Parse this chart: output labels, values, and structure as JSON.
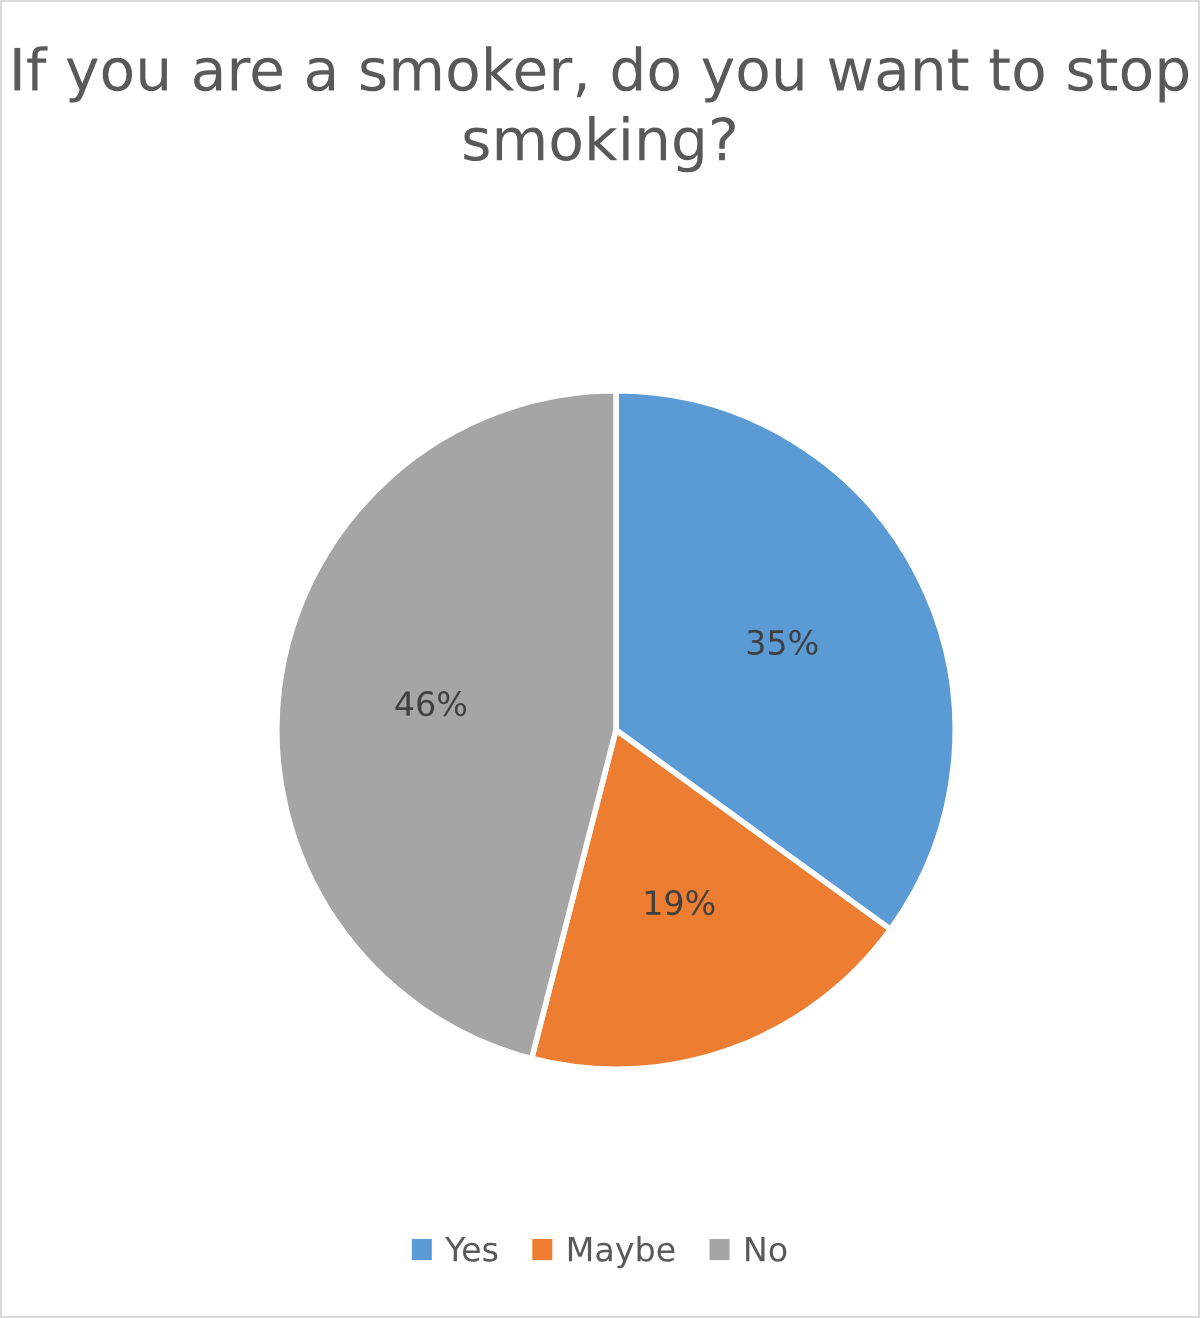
{
  "chart_data": {
    "type": "pie",
    "title": "If you are a smoker, do you want to stop smoking?",
    "categories": [
      "Yes",
      "Maybe",
      "No"
    ],
    "values": [
      35,
      19,
      46
    ],
    "colors": [
      "#5b9bd5",
      "#ed7d31",
      "#a5a5a5"
    ],
    "value_labels": [
      "35%",
      "19%",
      "46%"
    ],
    "legend": "bottom"
  }
}
